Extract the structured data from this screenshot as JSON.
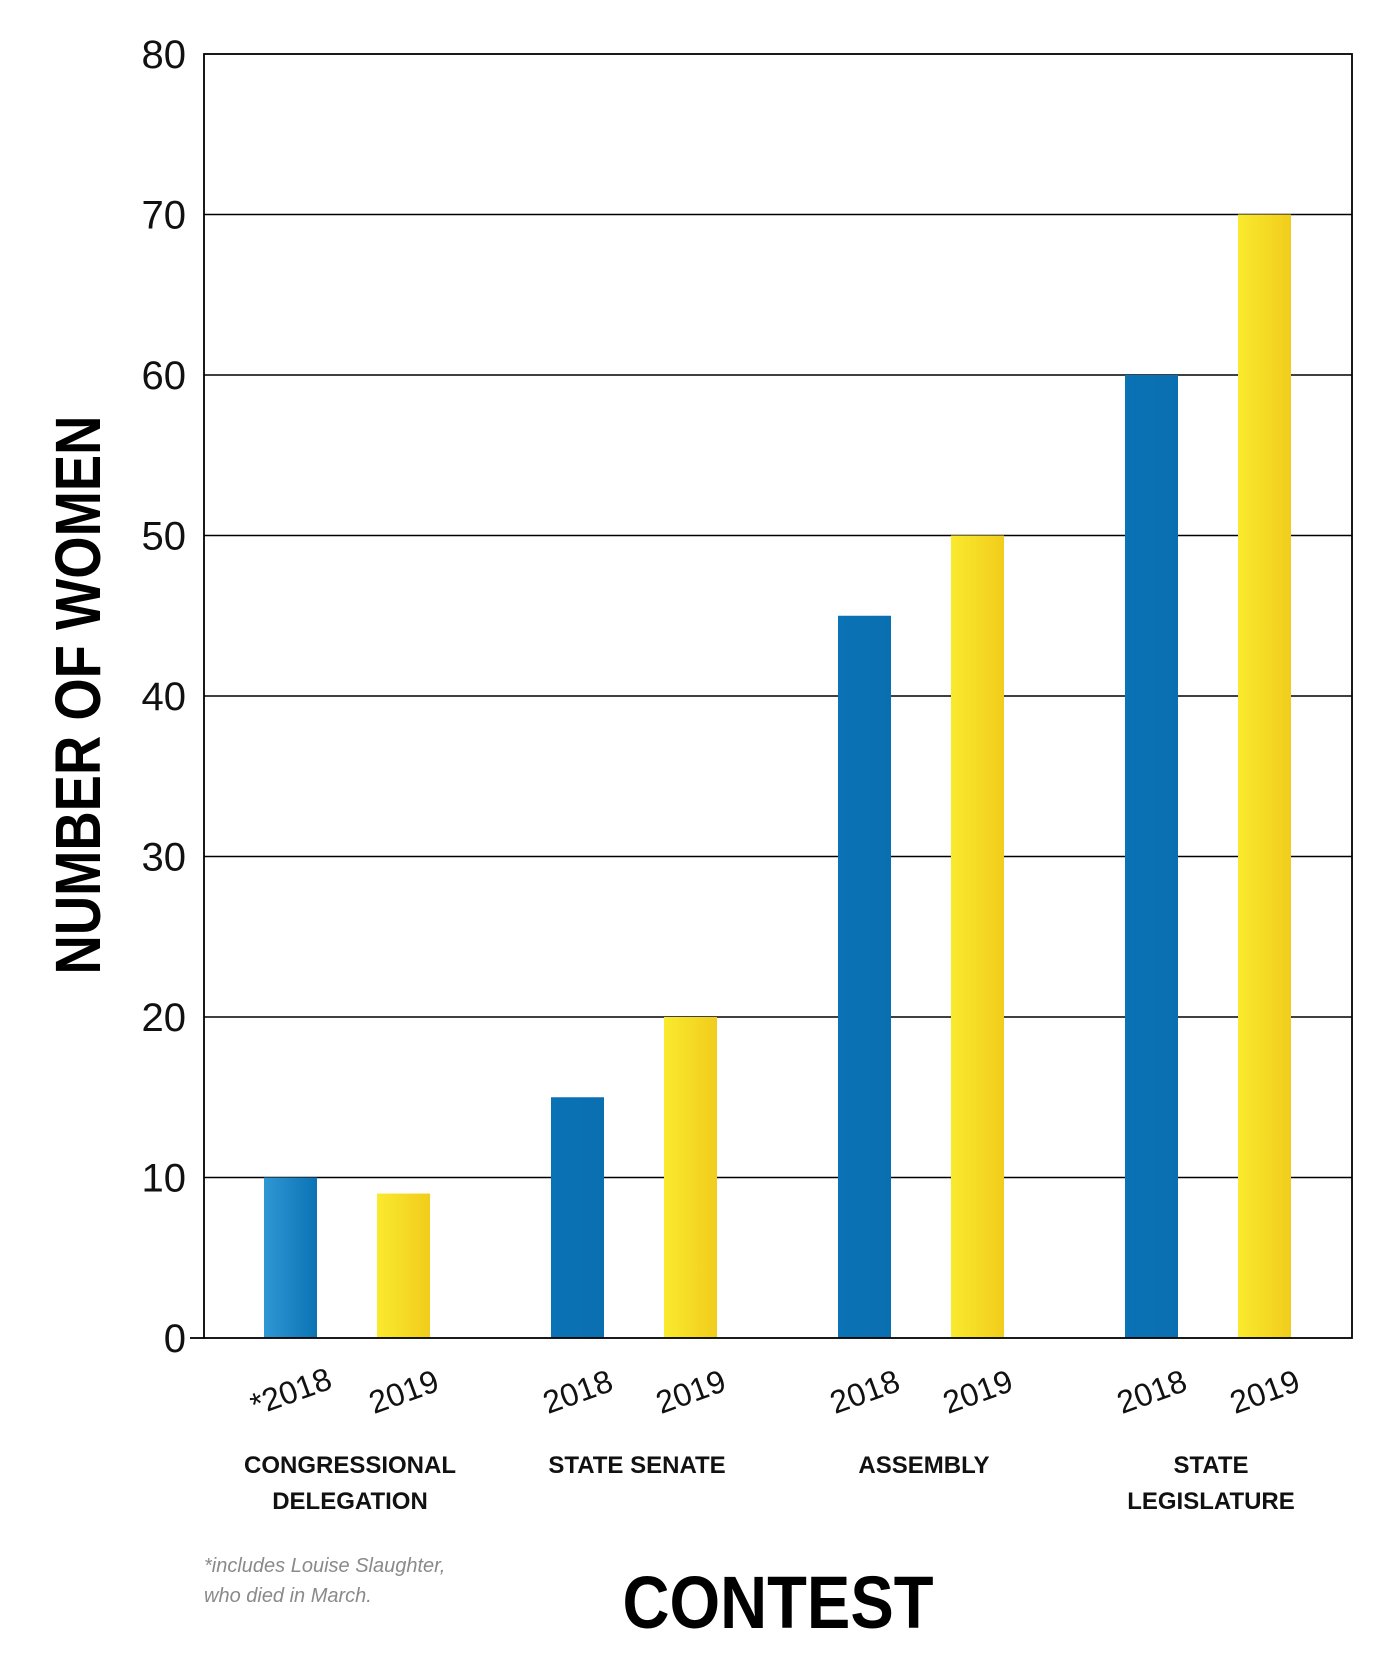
{
  "chart_data": {
    "type": "bar",
    "ylabel": "NUMBER OF WOMEN",
    "xlabel": "CONTEST",
    "ylim": [
      0,
      80
    ],
    "yticks": [
      0,
      10,
      20,
      30,
      40,
      50,
      60,
      70,
      80
    ],
    "grid": true,
    "groups": [
      {
        "label_lines": [
          "CONGRESSIONAL",
          "DELEGATION"
        ]
      },
      {
        "label_lines": [
          "STATE SENATE"
        ]
      },
      {
        "label_lines": [
          "ASSEMBLY"
        ]
      },
      {
        "label_lines": [
          "STATE",
          "LEGISLATURE"
        ]
      }
    ],
    "series": [
      {
        "tick_labels": [
          "*2018",
          "2018",
          "2018",
          "2018"
        ],
        "values": [
          10,
          15,
          45,
          60
        ],
        "color": "#0a73b5"
      },
      {
        "tick_labels": [
          "2019",
          "2019",
          "2019",
          "2019"
        ],
        "values": [
          9,
          20,
          50,
          70
        ],
        "color": "#f4d31f"
      }
    ],
    "footnote_lines": [
      "*includes Louise Slaughter,",
      "who died in March."
    ]
  }
}
